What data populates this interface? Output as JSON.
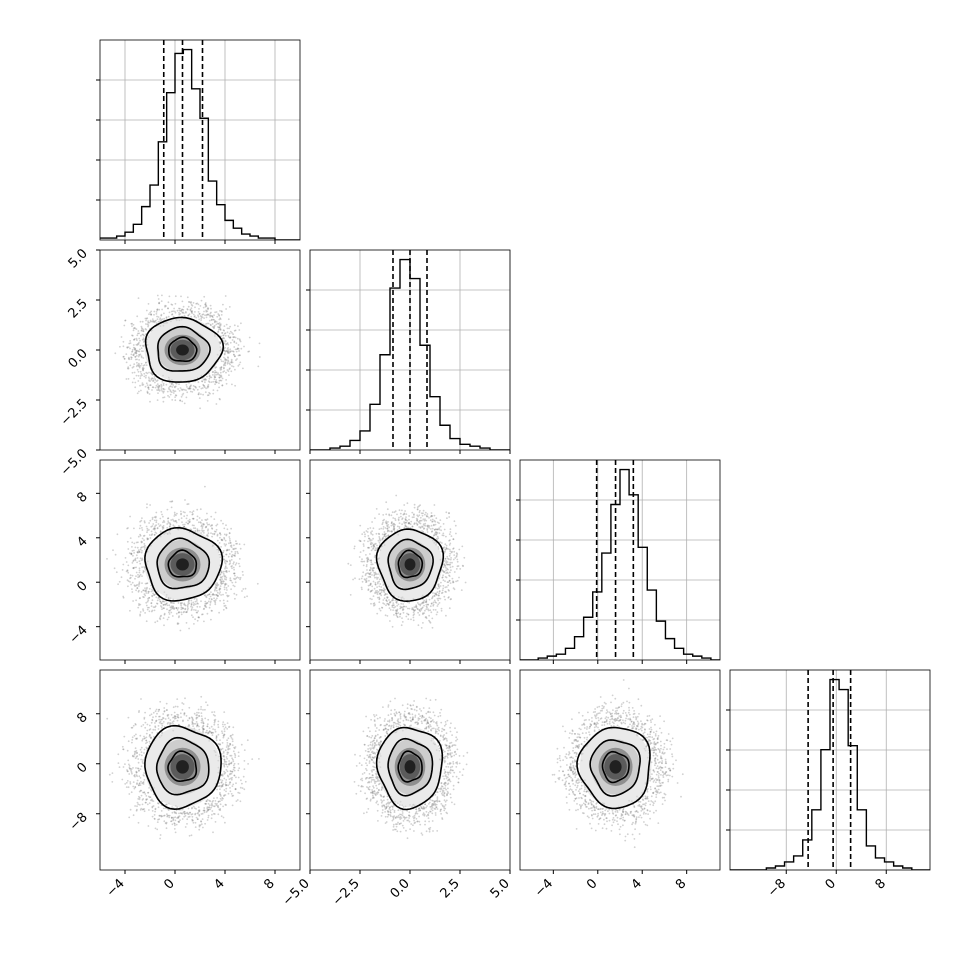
{
  "chart_data": {
    "type": "corner",
    "title": "",
    "n_params": 4,
    "params": [
      {
        "name": "",
        "range": [
          -6.0,
          10.0
        ],
        "ticks": [
          -4,
          0,
          4,
          8
        ],
        "tick_labels": [
          "−4",
          "0",
          "4",
          "8"
        ],
        "quantiles": [
          -0.9,
          0.6,
          2.2
        ],
        "hist_range": [
          -6.0,
          10.0
        ],
        "hist": [
          1,
          1,
          2,
          4,
          8,
          17,
          28,
          50,
          75,
          95,
          97,
          77,
          62,
          30,
          18,
          10,
          6,
          3,
          2,
          1,
          1,
          0,
          0,
          0
        ]
      },
      {
        "name": "",
        "range": [
          -5.0,
          5.0
        ],
        "ticks": [
          -5.0,
          -2.5,
          0.0,
          2.5,
          5.0
        ],
        "tick_labels": [
          "−5.0",
          "−2.5",
          "0.0",
          "2.5",
          "5.0"
        ],
        "quantiles": [
          -0.85,
          0.0,
          0.85
        ],
        "hist_range": [
          -5.0,
          5.0
        ],
        "hist": [
          0,
          0,
          1,
          2,
          5,
          10,
          24,
          50,
          85,
          100,
          90,
          55,
          28,
          13,
          6,
          3,
          2,
          1,
          0,
          0
        ]
      },
      {
        "name": "",
        "range": [
          -7.0,
          11.0
        ],
        "ticks": [
          -4,
          0,
          4,
          8
        ],
        "tick_labels": [
          "−4",
          "0",
          "4",
          "8"
        ],
        "quantiles": [
          -0.1,
          1.6,
          3.2
        ],
        "hist_range": [
          -7.0,
          11.0
        ],
        "hist": [
          0,
          0,
          1,
          2,
          3,
          6,
          12,
          22,
          35,
          55,
          80,
          98,
          85,
          58,
          36,
          20,
          11,
          6,
          3,
          2,
          1,
          0
        ]
      },
      {
        "name": "",
        "range": [
          -17.0,
          15.0
        ],
        "ticks": [
          -8,
          0,
          8
        ],
        "tick_labels": [
          "−8",
          "0",
          "8"
        ],
        "quantiles": [
          -4.5,
          -0.5,
          2.3
        ],
        "hist_range": [
          -17.0,
          15.0
        ],
        "hist": [
          0,
          0,
          0,
          0,
          1,
          2,
          4,
          7,
          15,
          30,
          60,
          95,
          90,
          62,
          30,
          12,
          6,
          4,
          2,
          1,
          0,
          0
        ]
      }
    ],
    "pairs": [
      {
        "x": 0,
        "y": 1,
        "mean": [
          0.6,
          0.0
        ],
        "sd": [
          1.6,
          0.85
        ],
        "contours_sd": [
          0.7,
          1.3,
          1.9
        ]
      },
      {
        "x": 0,
        "y": 2,
        "mean": [
          0.6,
          1.6
        ],
        "sd": [
          1.6,
          1.7
        ],
        "contours_sd": [
          0.7,
          1.3,
          1.9
        ]
      },
      {
        "x": 1,
        "y": 2,
        "mean": [
          0.0,
          1.6
        ],
        "sd": [
          0.85,
          1.7
        ],
        "contours_sd": [
          0.7,
          1.3,
          1.9
        ]
      },
      {
        "x": 0,
        "y": 3,
        "mean": [
          0.6,
          -0.5
        ],
        "sd": [
          1.6,
          3.4
        ],
        "contours_sd": [
          0.7,
          1.3,
          1.9
        ]
      },
      {
        "x": 1,
        "y": 3,
        "mean": [
          0.0,
          -0.5
        ],
        "sd": [
          0.85,
          3.4
        ],
        "contours_sd": [
          0.7,
          1.3,
          1.9
        ]
      },
      {
        "x": 2,
        "y": 3,
        "mean": [
          1.6,
          -0.5
        ],
        "sd": [
          1.7,
          3.4
        ],
        "contours_sd": [
          0.7,
          1.3,
          1.9
        ]
      }
    ],
    "grid": true,
    "quantile_style": "dashed",
    "colors": {
      "line": "#000000",
      "grid": "#b0b0b0",
      "scatter": "#7a7a7a"
    }
  }
}
